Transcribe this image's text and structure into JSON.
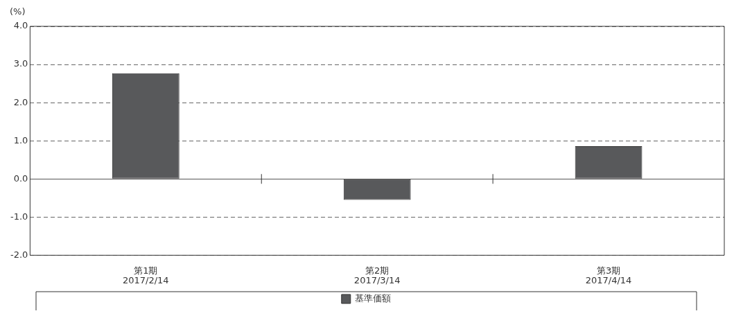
{
  "chart_data": {
    "type": "bar",
    "ylabel": "(%)",
    "categories": [
      "第1期\n2017/2/14",
      "第2期\n2017/3/14",
      "第3期\n2017/4/14"
    ],
    "series": [
      {
        "name": "基準価額",
        "color": "#58595b",
        "values": [
          2.77,
          -0.55,
          0.86
        ]
      }
    ],
    "ylim": [
      -2,
      4
    ],
    "yticks": [
      {
        "value": -2,
        "label": "-2.0"
      },
      {
        "value": -1,
        "label": "-1.0"
      },
      {
        "value": 0,
        "label": "0.0"
      },
      {
        "value": 1,
        "label": "1.0"
      },
      {
        "value": 2,
        "label": "2.0"
      },
      {
        "value": 3,
        "label": "3.0"
      },
      {
        "value": 4,
        "label": "4.0"
      }
    ],
    "grid": "y",
    "legend": "bottom"
  }
}
